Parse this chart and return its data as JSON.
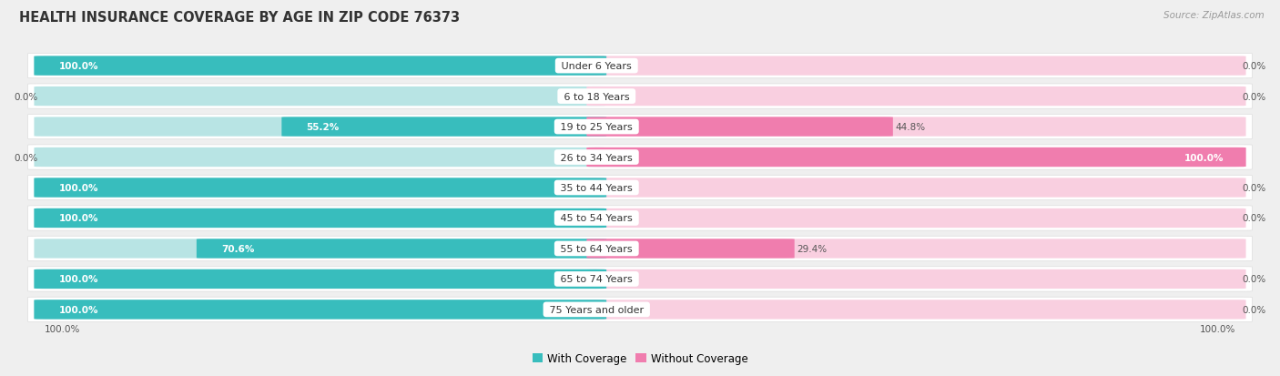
{
  "title": "HEALTH INSURANCE COVERAGE BY AGE IN ZIP CODE 76373",
  "source": "Source: ZipAtlas.com",
  "categories": [
    "Under 6 Years",
    "6 to 18 Years",
    "19 to 25 Years",
    "26 to 34 Years",
    "35 to 44 Years",
    "45 to 54 Years",
    "55 to 64 Years",
    "65 to 74 Years",
    "75 Years and older"
  ],
  "with_coverage": [
    100.0,
    0.0,
    55.2,
    0.0,
    100.0,
    100.0,
    70.6,
    100.0,
    100.0
  ],
  "without_coverage": [
    0.0,
    0.0,
    44.8,
    100.0,
    0.0,
    0.0,
    29.4,
    0.0,
    0.0
  ],
  "color_with": "#38BDBD",
  "color_without": "#F07DAE",
  "color_with_light": "#B8E4E4",
  "color_without_light": "#F9CFE0",
  "bg_color": "#EFEFEF",
  "row_bg_color": "#FFFFFF",
  "title_fontsize": 10.5,
  "label_fontsize": 8,
  "value_fontsize": 7.5,
  "legend_fontsize": 8.5,
  "source_fontsize": 7.5
}
